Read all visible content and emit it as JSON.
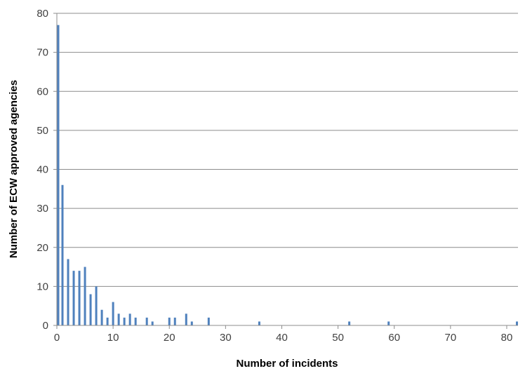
{
  "chart_data": {
    "type": "bar",
    "title": "",
    "xlabel": "Number of incidents",
    "ylabel": "Number of ECW approved agencies",
    "xlim": [
      0,
      82
    ],
    "ylim": [
      0,
      80
    ],
    "xticks": [
      0,
      10,
      20,
      30,
      40,
      50,
      60,
      70,
      80
    ],
    "yticks": [
      0,
      10,
      20,
      30,
      40,
      50,
      60,
      70,
      80
    ],
    "grid": "horizontal",
    "legend": "none",
    "bar_color": "#4f81bd",
    "grid_color": "#8c8c8c",
    "x": [
      0,
      1,
      2,
      3,
      4,
      5,
      6,
      7,
      8,
      9,
      10,
      11,
      12,
      13,
      14,
      16,
      17,
      20,
      21,
      23,
      24,
      27,
      36,
      52,
      59,
      82
    ],
    "values": [
      77,
      36,
      17,
      14,
      14,
      15,
      8,
      10,
      4,
      2,
      6,
      3,
      2,
      3,
      2,
      2,
      1,
      2,
      2,
      3,
      1,
      2,
      1,
      1,
      1,
      1
    ]
  }
}
